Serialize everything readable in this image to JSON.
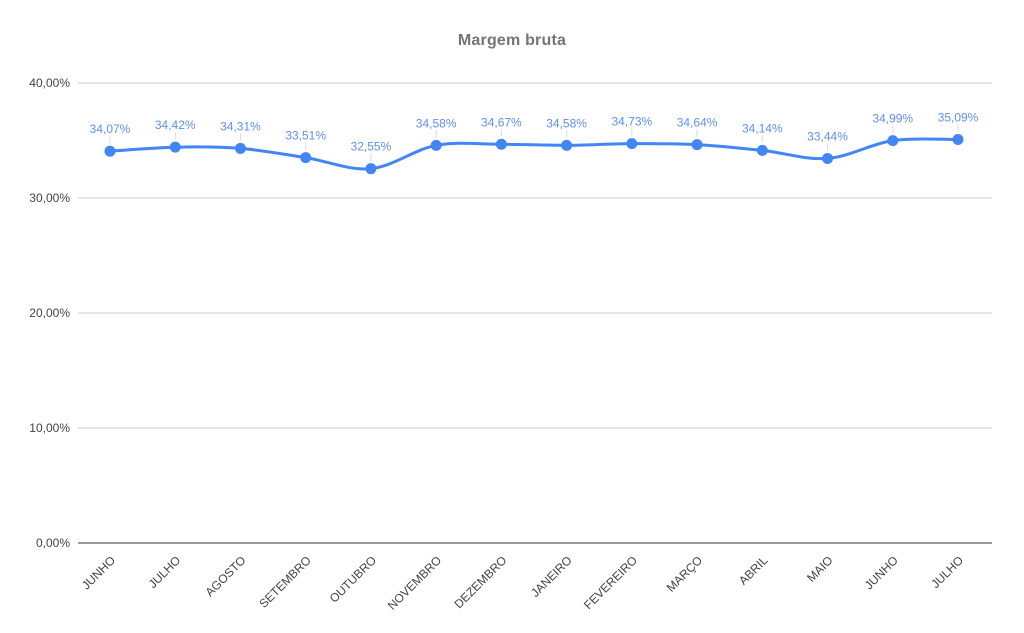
{
  "chart_data": {
    "type": "line",
    "title": "Margem bruta",
    "xlabel": "",
    "ylabel": "",
    "legend": "none",
    "grid": true,
    "curve": "smooth",
    "ylim": [
      0,
      40
    ],
    "categories": [
      "JUNHO",
      "JULHO",
      "AGOSTO",
      "SETEMBRO",
      "OUTUBRO",
      "NOVEMBRO",
      "DEZEMBRO",
      "JANEIRO",
      "FEVEREIRO",
      "MARÇO",
      "ABRIL",
      "MAIO",
      "JUNHO",
      "JULHO"
    ],
    "series": [
      {
        "name": "Margem bruta",
        "values": [
          34.07,
          34.42,
          34.31,
          33.51,
          32.55,
          34.58,
          34.67,
          34.58,
          34.73,
          34.64,
          34.14,
          33.44,
          34.99,
          35.09
        ],
        "point_labels": [
          "34,07%",
          "34,42%",
          "34,31%",
          "33,51%",
          "32,55%",
          "34,58%",
          "34,67%",
          "34,58%",
          "34,73%",
          "34,64%",
          "34,14%",
          "33,44%",
          "34,99%",
          "35,09%"
        ]
      }
    ],
    "yticks": [
      {
        "value": 40,
        "label": "40,00%"
      },
      {
        "value": 30,
        "label": "30,00%"
      },
      {
        "value": 20,
        "label": "20,00%"
      },
      {
        "value": 10,
        "label": "10,00%"
      },
      {
        "value": 0,
        "label": "0,00%"
      }
    ],
    "colors": {
      "series": "#4285f4",
      "annotation_text": "#5e90f2",
      "grid": "#cccccc",
      "baseline": "#333333",
      "axis_text": "#444444",
      "stem": "#d9d9d9",
      "title": "#757575",
      "background": "#ffffff"
    }
  }
}
